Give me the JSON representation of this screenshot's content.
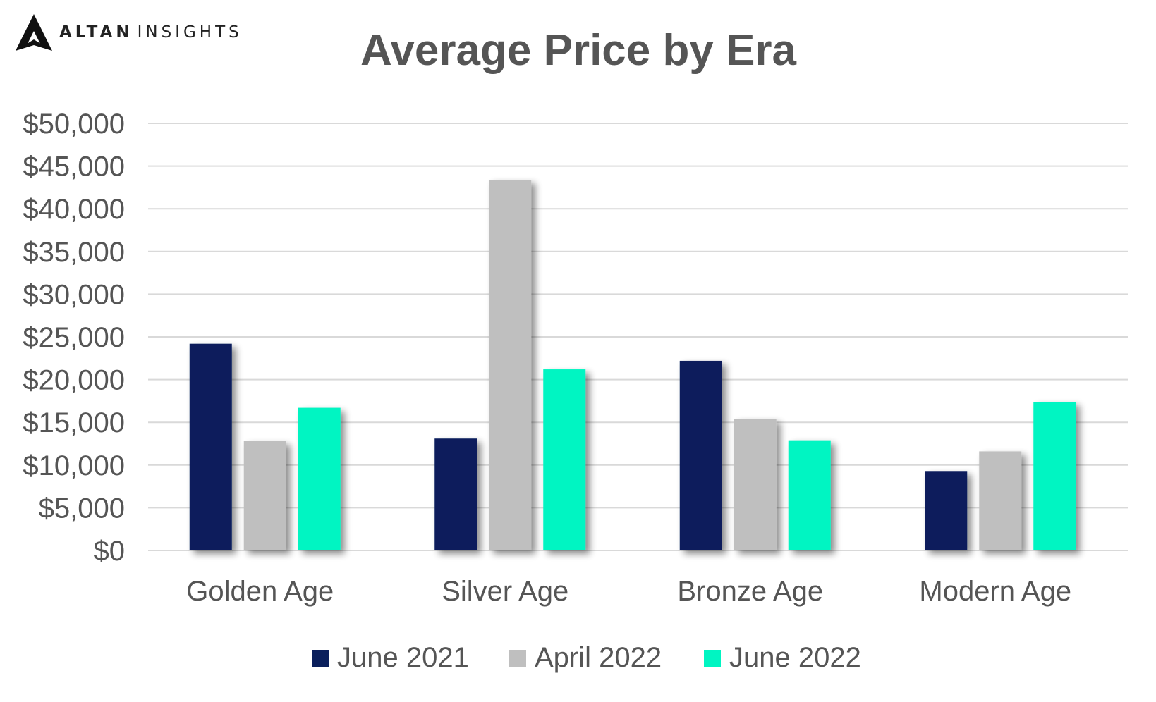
{
  "brand": {
    "name_strong": "ALTAN",
    "name_light": "INSIGHTS",
    "logo_icon": "altan-triangle-logo"
  },
  "chart_data": {
    "type": "bar",
    "title": "Average Price by Era",
    "xlabel": "",
    "ylabel": "",
    "categories": [
      "Golden Age",
      "Silver Age",
      "Bronze Age",
      "Modern Age"
    ],
    "series": [
      {
        "name": "June 2021",
        "color": "#0a1f5c",
        "values": [
          24200,
          13100,
          22200,
          9300
        ]
      },
      {
        "name": "April 2022",
        "color": "#bfbfbf",
        "values": [
          12800,
          43400,
          15400,
          11600
        ]
      },
      {
        "name": "June 2022",
        "color": "#00f5c2",
        "values": [
          16700,
          21200,
          12900,
          17400
        ]
      }
    ],
    "ylim": [
      0,
      50000
    ],
    "yticks": [
      0,
      5000,
      10000,
      15000,
      20000,
      25000,
      30000,
      35000,
      40000,
      45000,
      50000
    ],
    "ytick_labels": [
      "$0",
      "$5,000",
      "$10,000",
      "$15,000",
      "$20,000",
      "$25,000",
      "$30,000",
      "$35,000",
      "$40,000",
      "$45,000",
      "$50,000"
    ],
    "grid": true,
    "gridline_color": "#d9d9d9",
    "legend_position": "bottom"
  }
}
